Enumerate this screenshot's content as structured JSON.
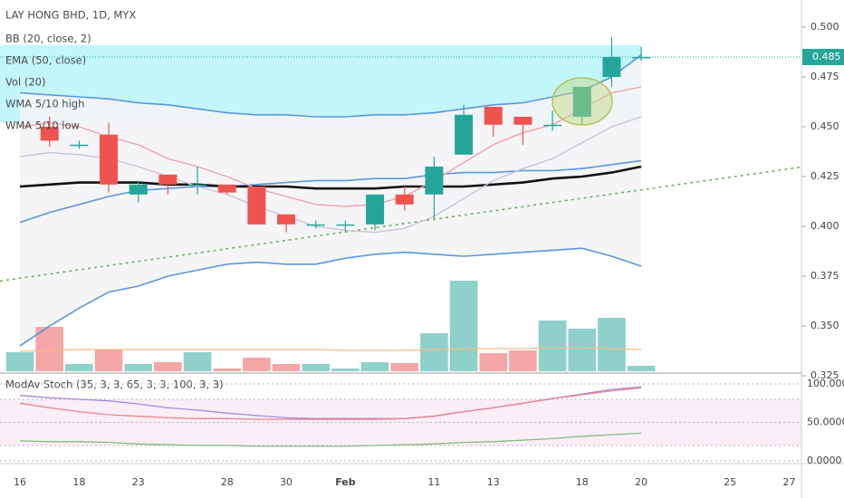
{
  "chart_data": {
    "type": "candlestick",
    "title": "LAY HONG BHD, 1D, MYX",
    "indicator_labels": [
      "BB (20, close, 2)",
      "EMA (50, close)",
      "Vol (20)",
      "WMA 5/10 high",
      "WMA 5/10 low"
    ],
    "categories": [
      "16",
      null,
      "18",
      null,
      "23",
      null,
      null,
      "28",
      null,
      "30",
      null,
      "Feb",
      null,
      null,
      "11",
      null,
      "13",
      null,
      null,
      "18",
      null,
      "20",
      null,
      null,
      "25",
      null,
      "27",
      null
    ],
    "ylim": [
      0.3264,
      0.5136
    ],
    "yticks": [
      {
        "value": 0.5,
        "label": "0.500"
      },
      0.475,
      {
        "value": 0.45,
        "label": "0.450"
      },
      0.425,
      {
        "value": 0.4,
        "label": "0.400"
      },
      0.375,
      {
        "value": 0.35,
        "label": "0.350"
      },
      0.325
    ],
    "last_price": 0.485,
    "last_price_color": "#26a69a",
    "up_color": "#26a69a",
    "down_color": "#ef5350",
    "open": [
      null,
      0.45,
      0.441,
      0.446,
      0.416,
      0.426,
      0.421,
      0.421,
      0.42,
      0.406,
      0.401,
      0.401,
      0.401,
      0.416,
      0.416,
      0.436,
      0.46,
      0.455,
      0.451,
      0.455,
      0.475,
      0.485,
      null,
      null,
      null,
      null,
      null,
      null
    ],
    "high": [
      null,
      0.455,
      0.443,
      0.452,
      0.423,
      0.426,
      0.43,
      0.421,
      0.42,
      0.406,
      0.403,
      0.403,
      0.416,
      0.42,
      0.435,
      0.461,
      0.46,
      0.455,
      0.458,
      0.47,
      0.495,
      0.49,
      null,
      null,
      null,
      null,
      null,
      null
    ],
    "low": [
      null,
      0.44,
      0.439,
      0.417,
      0.412,
      0.416,
      0.416,
      0.416,
      0.401,
      0.397,
      0.399,
      0.397,
      0.398,
      0.408,
      0.404,
      0.436,
      0.445,
      0.441,
      0.448,
      0.451,
      0.47,
      0.483,
      null,
      null,
      null,
      null,
      null,
      null
    ],
    "close": [
      null,
      0.443,
      0.441,
      0.421,
      0.421,
      0.421,
      0.421,
      0.417,
      0.401,
      0.401,
      0.401,
      0.401,
      0.416,
      0.411,
      0.43,
      0.456,
      0.451,
      0.451,
      0.451,
      0.47,
      0.485,
      0.485,
      null,
      null,
      null,
      null,
      null,
      null
    ],
    "highlight_zone": {
      "ylim": [
        0.452,
        0.491
      ],
      "color": "#c2f6fa"
    },
    "bb_fill_color": "#f4f4f6",
    "series": [
      {
        "color": "#5b97dd",
        "width": 1.6,
        "values": [
          0.467,
          0.466,
          0.465,
          0.464,
          0.462,
          0.461,
          0.459,
          0.457,
          0.456,
          0.456,
          0.455,
          0.455,
          0.456,
          0.456,
          0.457,
          0.459,
          0.461,
          0.462,
          0.465,
          0.468,
          0.475,
          0.486,
          null,
          null,
          null,
          null,
          null,
          null
        ]
      },
      {
        "color": "#5b97dd",
        "width": 1.6,
        "values": [
          0.402,
          0.407,
          0.411,
          0.415,
          0.418,
          0.419,
          0.42,
          0.42,
          0.421,
          0.422,
          0.423,
          0.423,
          0.424,
          0.424,
          0.426,
          0.427,
          0.427,
          0.428,
          0.428,
          0.429,
          0.431,
          0.433,
          null,
          null,
          null,
          null,
          null,
          null
        ]
      },
      {
        "color": "#5b97dd",
        "width": 1.6,
        "values": [
          0.34,
          0.35,
          0.359,
          0.367,
          0.37,
          0.375,
          0.378,
          0.381,
          0.382,
          0.381,
          0.381,
          0.384,
          0.386,
          0.387,
          0.386,
          0.385,
          0.386,
          0.387,
          0.388,
          0.389,
          0.385,
          0.38,
          null,
          null,
          null,
          null,
          null,
          null
        ]
      },
      {
        "color": "#111111",
        "width": 2.6,
        "values": [
          0.42,
          0.421,
          0.422,
          0.422,
          0.422,
          0.421,
          0.421,
          0.42,
          0.42,
          0.42,
          0.419,
          0.419,
          0.419,
          0.42,
          0.42,
          0.42,
          0.421,
          0.422,
          0.424,
          0.425,
          0.427,
          0.43,
          null,
          null,
          null,
          null,
          null,
          null
        ]
      },
      {
        "color": "#f0a2aa",
        "width": 1.4,
        "values": [
          0.45,
          0.452,
          0.45,
          0.445,
          0.441,
          0.434,
          0.43,
          0.425,
          0.419,
          0.415,
          0.411,
          0.41,
          0.411,
          0.415,
          0.423,
          0.432,
          0.441,
          0.447,
          0.451,
          0.459,
          0.467,
          0.47,
          null,
          null,
          null,
          null,
          null,
          null
        ]
      },
      {
        "color": "#cbc2da",
        "width": 1.4,
        "values": [
          0.435,
          0.437,
          0.436,
          0.434,
          0.43,
          0.425,
          0.42,
          0.416,
          0.41,
          0.405,
          0.4,
          0.398,
          0.397,
          0.399,
          0.405,
          0.414,
          0.423,
          0.429,
          0.434,
          0.442,
          0.45,
          0.455,
          null,
          null,
          null,
          null,
          null,
          null
        ]
      }
    ],
    "trendline": {
      "color": "#6aad55",
      "from": [
        0,
        0.374
      ],
      "to": [
        27,
        0.431
      ]
    },
    "volume": {
      "ylim": [
        0,
        410
      ],
      "values": [
        21,
        49,
        8,
        24,
        8,
        10,
        21,
        3,
        15,
        8,
        8,
        3,
        10,
        9,
        42,
        100,
        20,
        23,
        56,
        47,
        59,
        6,
        null,
        null,
        null,
        null,
        null,
        null
      ],
      "colors": [
        "#8fd0ca",
        "#f5a6a6",
        "#8fd0ca",
        "#f5a6a6",
        "#8fd0ca",
        "#f5a6a6",
        "#8fd0ca",
        "#f5a6a6",
        "#f5a6a6",
        "#f5a6a6",
        "#8fd0ca",
        "#8fd0ca",
        "#8fd0ca",
        "#f5a6a6",
        "#8fd0ca",
        "#8fd0ca",
        "#f5a6a6",
        "#f5a6a6",
        "#8fd0ca",
        "#8fd0ca",
        "#8fd0ca",
        "#8fd0ca",
        null,
        null,
        null,
        null,
        null,
        null
      ],
      "ma": {
        "color": "#f6b98a",
        "values": [
          22,
          23,
          24,
          24,
          24,
          24,
          24,
          24,
          24,
          24,
          24,
          23,
          23,
          23,
          24,
          25,
          25,
          25,
          26,
          26,
          25,
          24,
          null,
          null,
          null,
          null,
          null,
          null
        ]
      }
    },
    "stoch": {
      "title": "ModAv Stoch (35, 3, 3, 65, 3, 3, 100, 3, 3)",
      "ylim": [
        -3.5,
        113
      ],
      "yticks": [
        {
          "value": 100,
          "label": "100.0000"
        },
        {
          "value": 50,
          "label": "50.0000"
        },
        {
          "value": 0,
          "label": "0.0000"
        }
      ],
      "bands": [
        20,
        80
      ],
      "band_color": "#fbeef6",
      "series": [
        {
          "color": "#a888dc",
          "values": [
            85,
            82,
            80,
            78,
            74,
            69,
            66,
            62,
            59,
            56,
            55,
            55,
            55,
            55,
            58,
            64,
            69,
            75,
            81,
            87,
            93,
            96,
            null,
            null,
            null,
            null,
            null,
            null
          ]
        },
        {
          "color": "#e8848f",
          "values": [
            75,
            69,
            64,
            60,
            58,
            56,
            55,
            55,
            54,
            54,
            54,
            54,
            54,
            55,
            58,
            64,
            69,
            75,
            81,
            86,
            91,
            95,
            null,
            null,
            null,
            null,
            null,
            null
          ]
        },
        {
          "color": "#86b985",
          "values": [
            26,
            25,
            25,
            24,
            22,
            21,
            20,
            20,
            19,
            19,
            19,
            19,
            20,
            21,
            22,
            24,
            25,
            27,
            29,
            32,
            34,
            36,
            null,
            null,
            null,
            null,
            null,
            null
          ]
        }
      ]
    }
  }
}
